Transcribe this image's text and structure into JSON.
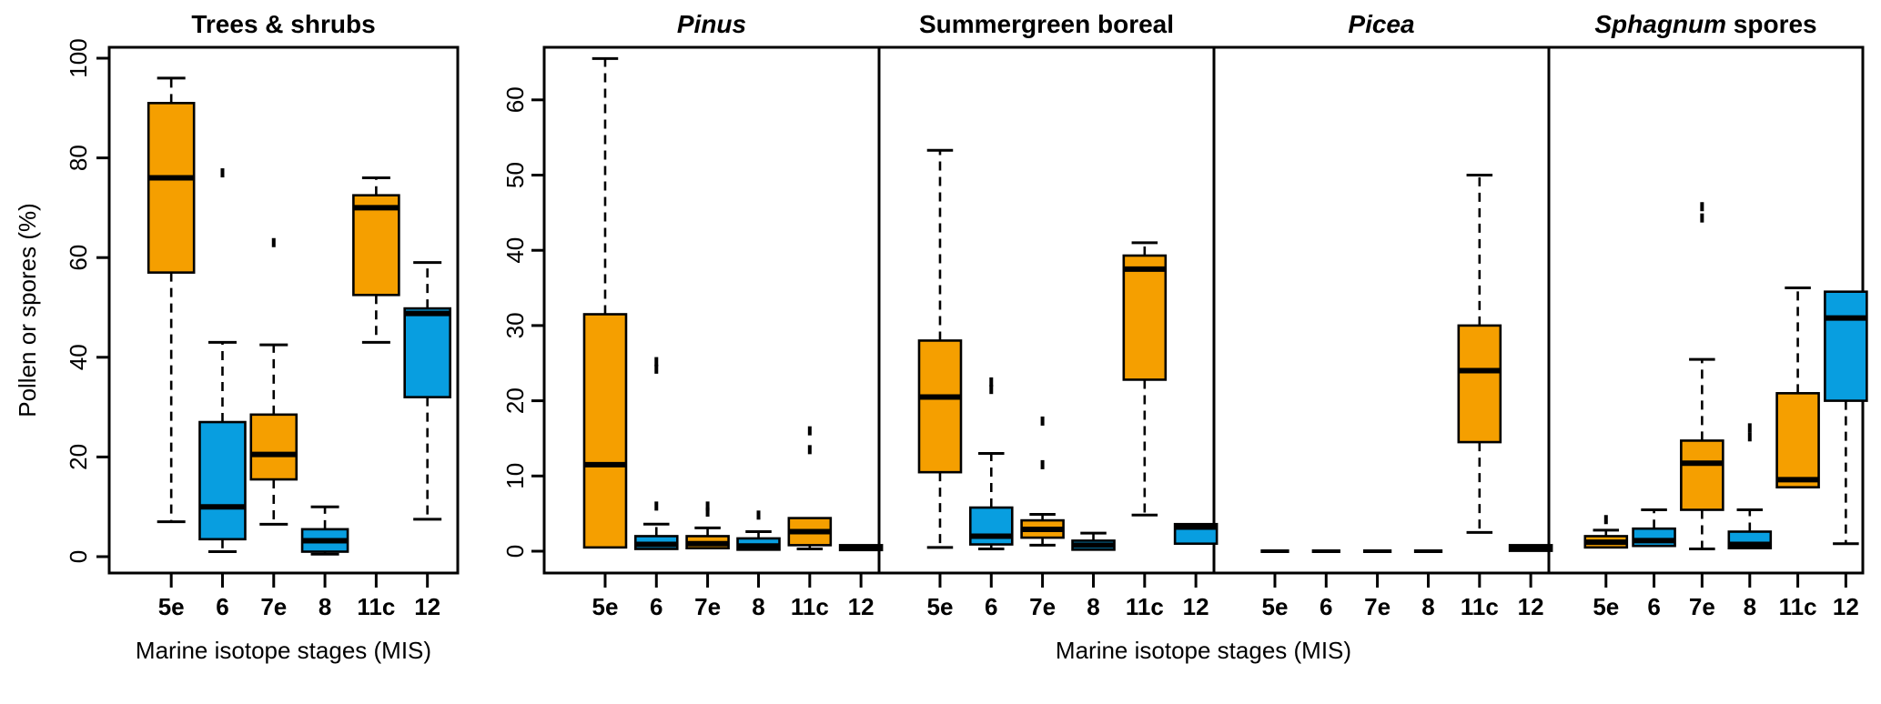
{
  "figure": {
    "y_axis_label": "Pollen or spores (%)",
    "x_axis_label_left": "Marine isotope stages (MIS)",
    "x_axis_label_right": "Marine isotope stages (MIS)",
    "categories": [
      "5e",
      "6",
      "7e",
      "8",
      "11c",
      "12"
    ],
    "left_axis_ticks": [
      0,
      20,
      40,
      60,
      80,
      100
    ],
    "right_axis_ticks": [
      0,
      10,
      20,
      30,
      40,
      50,
      60
    ],
    "colors": {
      "interglacial": "#F59F00",
      "glacial": "#089EE0",
      "axis": "#000000",
      "background": "#FFFFFF"
    }
  },
  "chart_data": [
    {
      "type": "boxplot",
      "title": "Trees & shrubs",
      "title_parts": [
        {
          "text": "Trees & shrubs",
          "italic": false
        }
      ],
      "axis": "left",
      "ylim": [
        0,
        100
      ],
      "categories": [
        "5e",
        "6",
        "7e",
        "8",
        "11c",
        "12"
      ],
      "boxes": [
        {
          "category": "5e",
          "stage_type": "interglacial",
          "whisker_low": 7,
          "q1": 57,
          "median": 76,
          "q3": 91,
          "whisker_high": 96,
          "outliers": []
        },
        {
          "category": "6",
          "stage_type": "glacial",
          "whisker_low": 1,
          "q1": 3.5,
          "median": 10,
          "q3": 27,
          "whisker_high": 43,
          "outliers": [
            77
          ]
        },
        {
          "category": "7e",
          "stage_type": "interglacial",
          "whisker_low": 6.5,
          "q1": 15.5,
          "median": 20.5,
          "q3": 28.5,
          "whisker_high": 42.5,
          "outliers": [
            63
          ]
        },
        {
          "category": "8",
          "stage_type": "glacial",
          "whisker_low": 0.5,
          "q1": 1,
          "median": 3.2,
          "q3": 5.5,
          "whisker_high": 10,
          "outliers": []
        },
        {
          "category": "11c",
          "stage_type": "interglacial",
          "whisker_low": 43,
          "q1": 52.5,
          "median": 70,
          "q3": 72.5,
          "whisker_high": 76,
          "outliers": []
        },
        {
          "category": "12",
          "stage_type": "glacial",
          "whisker_low": 7.5,
          "q1": 32,
          "median": 48.8,
          "q3": 49.8,
          "whisker_high": 59,
          "outliers": []
        }
      ]
    },
    {
      "type": "boxplot",
      "title": "Pinus",
      "title_parts": [
        {
          "text": "Pinus",
          "italic": true
        }
      ],
      "axis": "right",
      "ylim": [
        0,
        66
      ],
      "categories": [
        "5e",
        "6",
        "7e",
        "8",
        "11c",
        "12"
      ],
      "boxes": [
        {
          "category": "5e",
          "stage_type": "interglacial",
          "whisker_low": 0.2,
          "q1": 0.5,
          "median": 11.5,
          "q3": 31.5,
          "whisker_high": 65.5,
          "outliers": []
        },
        {
          "category": "6",
          "stage_type": "glacial",
          "whisker_low": 0.1,
          "q1": 0.3,
          "median": 0.9,
          "q3": 2,
          "whisker_high": 3.6,
          "outliers": [
            6,
            24.2,
            25.2
          ]
        },
        {
          "category": "7e",
          "stage_type": "interglacial",
          "whisker_low": 0.2,
          "q1": 0.4,
          "median": 1,
          "q3": 2,
          "whisker_high": 3.1,
          "outliers": [
            5.2,
            6
          ]
        },
        {
          "category": "8",
          "stage_type": "glacial",
          "whisker_low": 0.1,
          "q1": 0.2,
          "median": 0.7,
          "q3": 1.7,
          "whisker_high": 2.6,
          "outliers": [
            4.8
          ]
        },
        {
          "category": "11c",
          "stage_type": "interglacial",
          "whisker_low": 0.3,
          "q1": 0.8,
          "median": 2.6,
          "q3": 4.4,
          "whisker_high": 4.8,
          "outliers": [
            13.5,
            16
          ]
        },
        {
          "category": "12",
          "stage_type": "glacial",
          "whisker_low": 0.05,
          "q1": 0.15,
          "median": 0.45,
          "q3": 0.8,
          "whisker_high": 1,
          "outliers": []
        }
      ]
    },
    {
      "type": "boxplot",
      "title": "Summergreen boreal",
      "title_parts": [
        {
          "text": "Summergreen boreal",
          "italic": false
        }
      ],
      "axis": "right",
      "ylim": [
        0,
        66
      ],
      "categories": [
        "5e",
        "6",
        "7e",
        "8",
        "11c",
        "12"
      ],
      "boxes": [
        {
          "category": "5e",
          "stage_type": "interglacial",
          "whisker_low": 0.5,
          "q1": 10.5,
          "median": 20.5,
          "q3": 28,
          "whisker_high": 53.3,
          "outliers": []
        },
        {
          "category": "6",
          "stage_type": "glacial",
          "whisker_low": 0.3,
          "q1": 0.9,
          "median": 2,
          "q3": 5.8,
          "whisker_high": 13,
          "outliers": [
            21.5,
            22.5
          ]
        },
        {
          "category": "7e",
          "stage_type": "interglacial",
          "whisker_low": 0.8,
          "q1": 1.8,
          "median": 2.9,
          "q3": 4.1,
          "whisker_high": 4.9,
          "outliers": [
            11.5,
            17.3
          ]
        },
        {
          "category": "8",
          "stage_type": "glacial",
          "whisker_low": 0.1,
          "q1": 0.2,
          "median": 0.8,
          "q3": 1.4,
          "whisker_high": 2.4,
          "outliers": []
        },
        {
          "category": "11c",
          "stage_type": "interglacial",
          "whisker_low": 4.8,
          "q1": 22.8,
          "median": 37.5,
          "q3": 39.3,
          "whisker_high": 41,
          "outliers": []
        },
        {
          "category": "12",
          "stage_type": "glacial",
          "whisker_low": 0.6,
          "q1": 1,
          "median": 3.2,
          "q3": 3.6,
          "whisker_high": 3.8,
          "outliers": []
        }
      ]
    },
    {
      "type": "boxplot",
      "title": "Picea",
      "title_parts": [
        {
          "text": "Picea",
          "italic": true
        }
      ],
      "axis": "right",
      "ylim": [
        0,
        66
      ],
      "categories": [
        "5e",
        "6",
        "7e",
        "8",
        "11c",
        "12"
      ],
      "boxes": [
        {
          "category": "5e",
          "stage_type": "interglacial",
          "flat": true,
          "whisker_low": 0,
          "q1": 0,
          "median": 0,
          "q3": 0,
          "whisker_high": 0,
          "outliers": []
        },
        {
          "category": "6",
          "stage_type": "glacial",
          "flat": true,
          "whisker_low": 0,
          "q1": 0,
          "median": 0,
          "q3": 0,
          "whisker_high": 0,
          "outliers": []
        },
        {
          "category": "7e",
          "stage_type": "interglacial",
          "flat": true,
          "whisker_low": 0,
          "q1": 0,
          "median": 0,
          "q3": 0,
          "whisker_high": 0,
          "outliers": []
        },
        {
          "category": "8",
          "stage_type": "glacial",
          "flat": true,
          "whisker_low": 0,
          "q1": 0,
          "median": 0,
          "q3": 0,
          "whisker_high": 0,
          "outliers": []
        },
        {
          "category": "11c",
          "stage_type": "interglacial",
          "whisker_low": 2.5,
          "q1": 14.5,
          "median": 24,
          "q3": 30,
          "whisker_high": 50,
          "outliers": []
        },
        {
          "category": "12",
          "stage_type": "glacial",
          "whisker_low": 0,
          "q1": 0.05,
          "median": 0.35,
          "q3": 0.8,
          "whisker_high": 1,
          "outliers": []
        }
      ]
    },
    {
      "type": "boxplot",
      "title": "Sphagnum spores",
      "title_parts": [
        {
          "text": "Sphagnum",
          "italic": true
        },
        {
          "text": " spores",
          "italic": false
        }
      ],
      "axis": "right",
      "ylim": [
        0,
        66
      ],
      "categories": [
        "5e",
        "6",
        "7e",
        "8",
        "11c",
        "12"
      ],
      "boxes": [
        {
          "category": "5e",
          "stage_type": "interglacial",
          "whisker_low": 0.2,
          "q1": 0.5,
          "median": 1.2,
          "q3": 2,
          "whisker_high": 2.8,
          "outliers": [
            4.2
          ]
        },
        {
          "category": "6",
          "stage_type": "glacial",
          "whisker_low": 0.3,
          "q1": 0.7,
          "median": 1.4,
          "q3": 3,
          "whisker_high": 5.5,
          "outliers": []
        },
        {
          "category": "7e",
          "stage_type": "interglacial",
          "whisker_low": 0.3,
          "q1": 5.5,
          "median": 11.7,
          "q3": 14.7,
          "whisker_high": 25.5,
          "outliers": [
            44.3,
            45.8
          ]
        },
        {
          "category": "8",
          "stage_type": "glacial",
          "whisker_low": 0.2,
          "q1": 0.4,
          "median": 0.9,
          "q3": 2.6,
          "whisker_high": 5.5,
          "outliers": [
            15.2,
            16.4
          ]
        },
        {
          "category": "11c",
          "stage_type": "interglacial",
          "whisker_low": 8.2,
          "q1": 8.5,
          "median": 9.5,
          "q3": 21,
          "whisker_high": 35,
          "outliers": []
        },
        {
          "category": "12",
          "stage_type": "glacial",
          "whisker_low": 1,
          "q1": 20,
          "median": 31,
          "q3": 34.5,
          "whisker_high": 34.7,
          "outliers": []
        }
      ]
    }
  ]
}
